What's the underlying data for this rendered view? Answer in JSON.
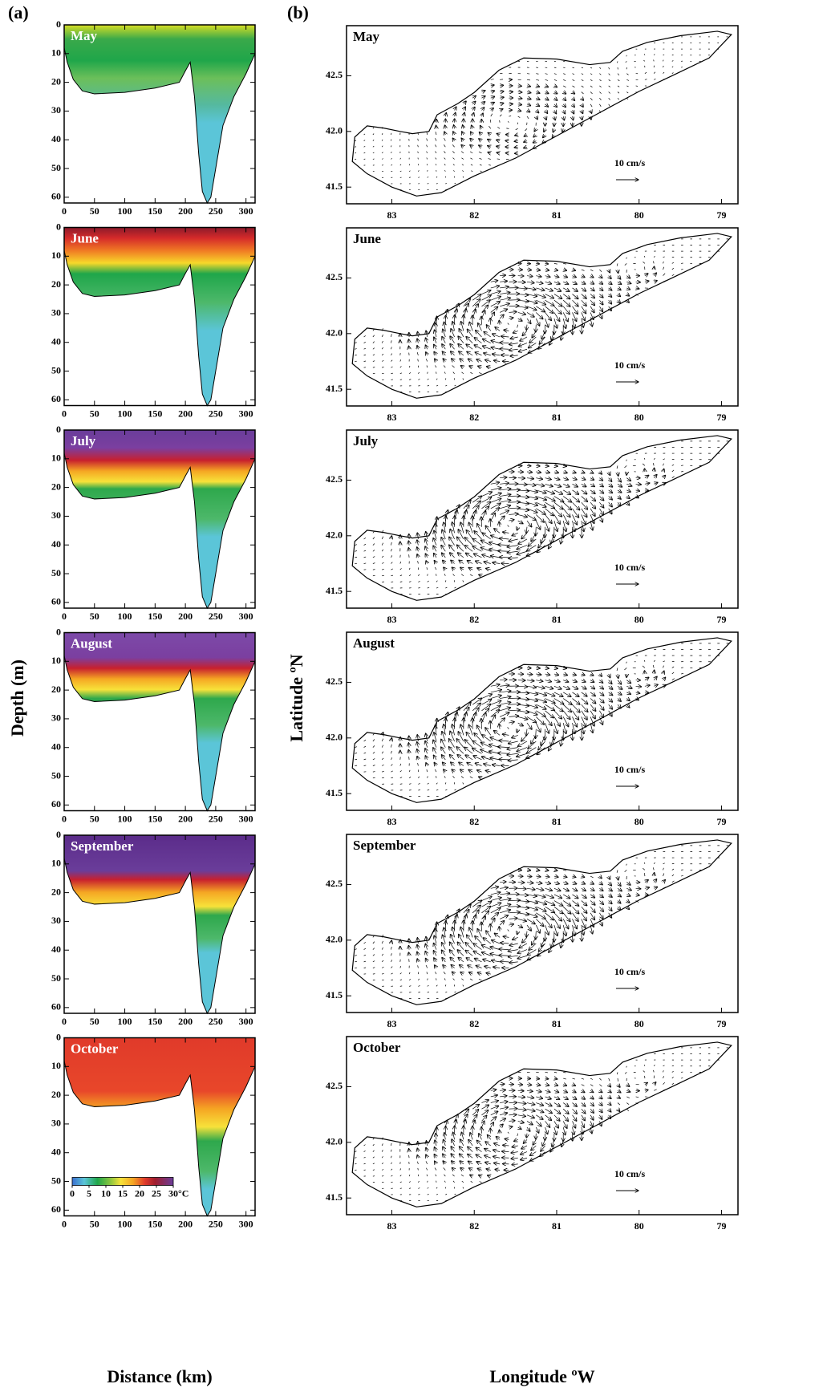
{
  "chart_data": [
    {
      "type": "contour",
      "label": "(a)",
      "panels": [
        "May",
        "June",
        "July",
        "August",
        "September",
        "October"
      ],
      "xlabel": "Distance (km)",
      "ylabel": "Depth (m)",
      "xlim": [
        0,
        315
      ],
      "xticks": [
        0,
        50,
        100,
        150,
        200,
        250,
        300
      ],
      "ylim": [
        0,
        62
      ],
      "y_inverted": true,
      "yticks": [
        0,
        10,
        20,
        30,
        40,
        50,
        60
      ],
      "colorbar": {
        "ticks": [
          0,
          5,
          10,
          15,
          20,
          25,
          30
        ],
        "unit": "°C"
      }
    },
    {
      "type": "quiver",
      "label": "(b)",
      "panels": [
        "May",
        "June",
        "July",
        "August",
        "September",
        "October"
      ],
      "xlabel": "Longitude ºW",
      "ylabel": "Latitude ºN",
      "xlim": [
        83.55,
        78.8
      ],
      "xticks": [
        83,
        82,
        81,
        80,
        79
      ],
      "ylim": [
        41.35,
        42.95
      ],
      "yticks": [
        41.5,
        {
          "value": 42,
          "label": "42.0"
        },
        42.5
      ],
      "scale_label": "10 cm/s"
    }
  ]
}
